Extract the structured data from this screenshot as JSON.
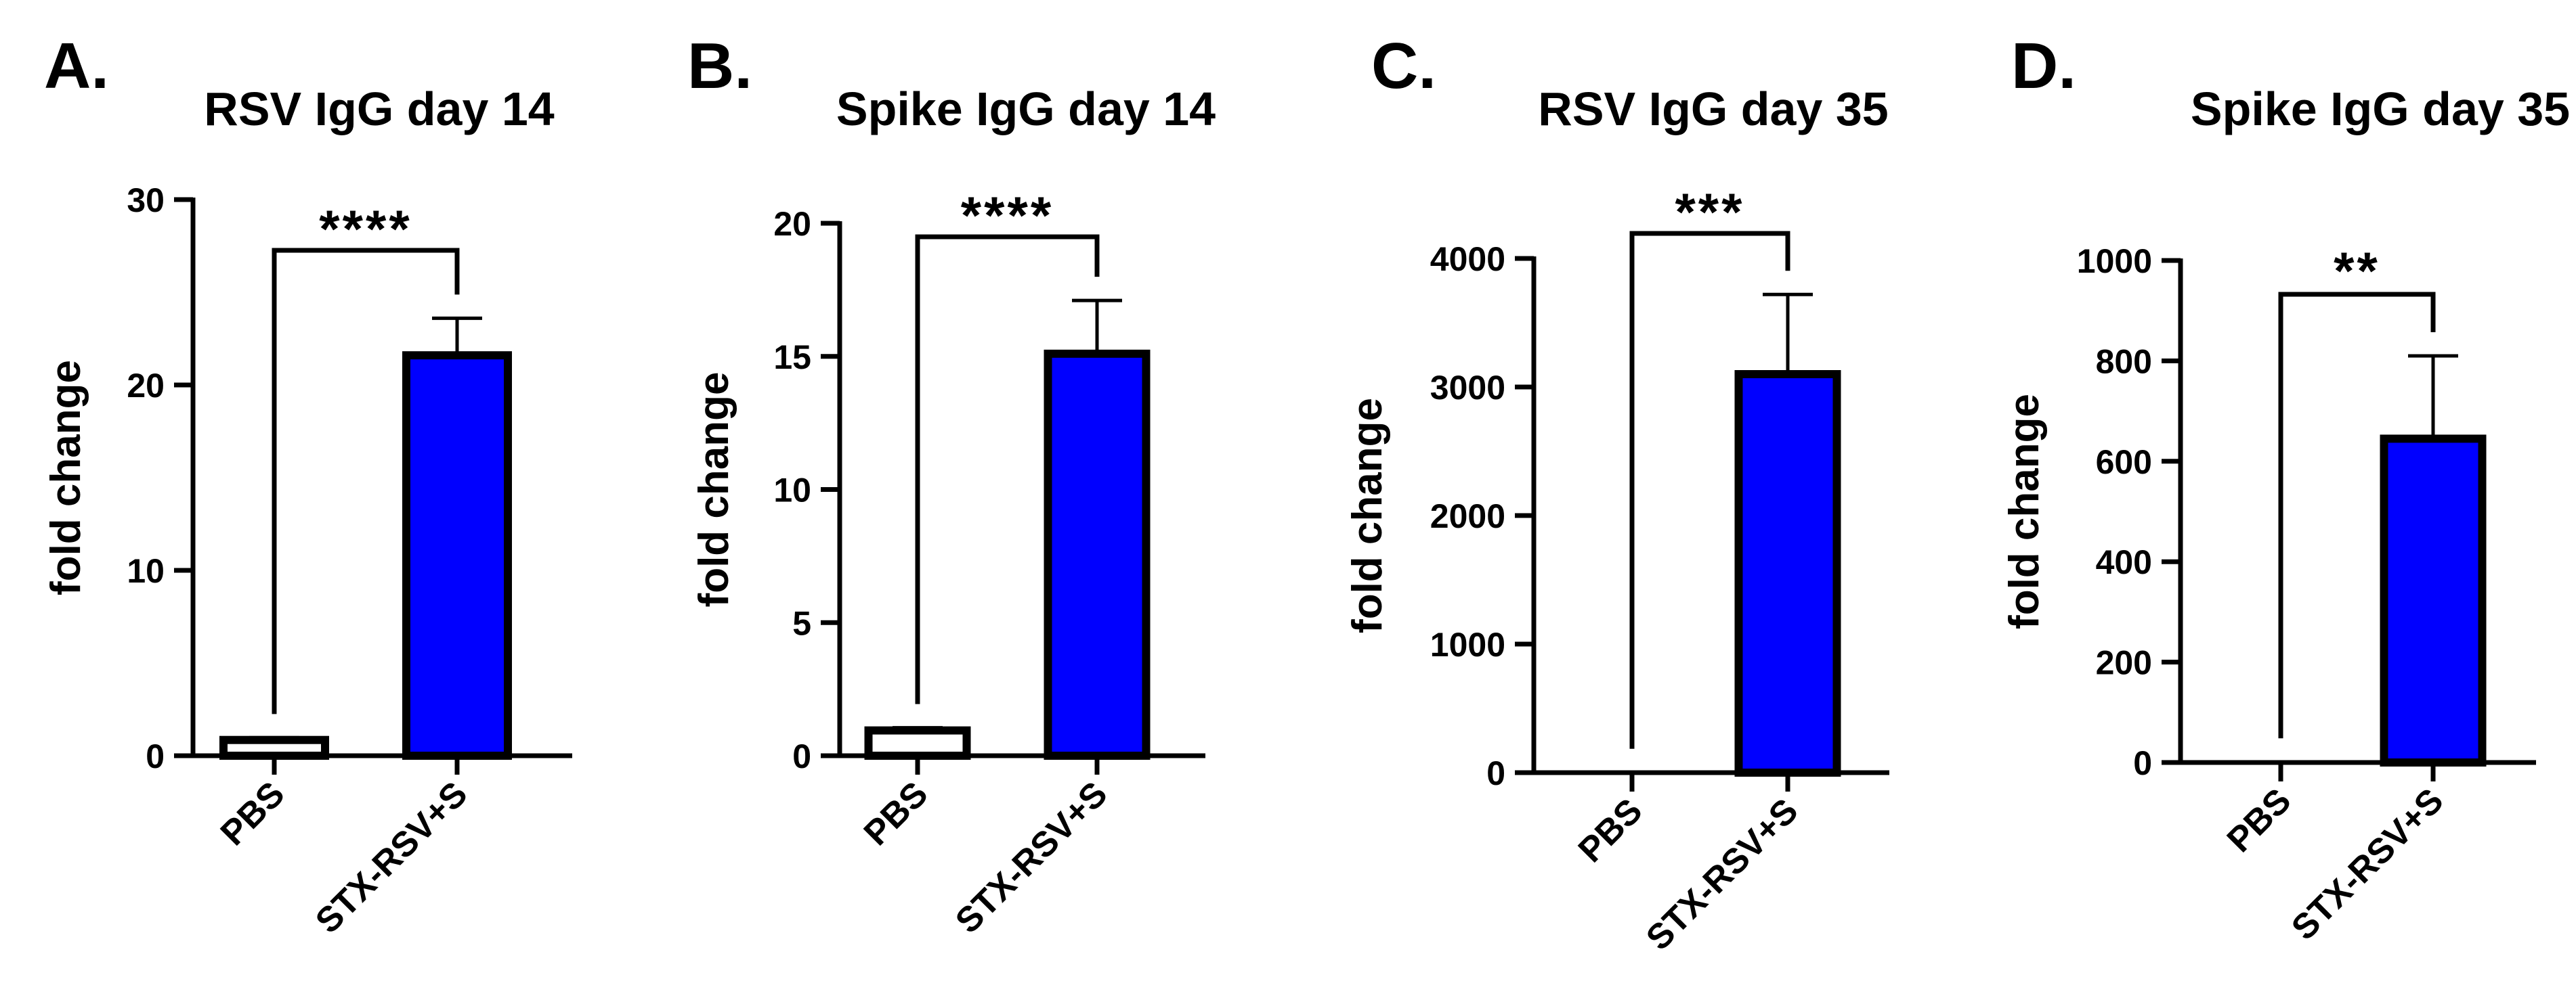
{
  "chart_data": [
    {
      "type": "bar",
      "panel": "A.",
      "title": "RSV IgG day 14",
      "ylabel": "fold change",
      "categories": [
        "PBS",
        "STX-RSV+S"
      ],
      "values": [
        0.85,
        21.6
      ],
      "errors": [
        0.12,
        2.0
      ],
      "bar_colors": [
        "#ffffff",
        "#0000ff"
      ],
      "ylim": [
        0,
        30
      ],
      "yticks": [
        0,
        10,
        20,
        30
      ],
      "ytick_labels": [
        "0",
        "10",
        "20",
        "30"
      ],
      "significance": "****"
    },
    {
      "type": "bar",
      "panel": "B.",
      "title": "Spike IgG day 14",
      "ylabel": "fold change",
      "categories": [
        "PBS",
        "STX-RSV+S"
      ],
      "values": [
        0.95,
        15.1
      ],
      "errors": [
        0.1,
        2.0
      ],
      "bar_colors": [
        "#ffffff",
        "#0000ff"
      ],
      "ylim": [
        0,
        20
      ],
      "yticks": [
        0,
        5,
        10,
        15,
        20
      ],
      "ytick_labels": [
        "0",
        "5",
        "10",
        "15",
        "20"
      ],
      "significance": "****"
    },
    {
      "type": "bar",
      "panel": "C.",
      "title": "RSV IgG day 35",
      "ylabel": "fold change",
      "categories": [
        "PBS",
        "STX-RSV+S"
      ],
      "values": [
        1,
        3100
      ],
      "errors": [
        0,
        620
      ],
      "bar_colors": [
        "#ffffff",
        "#0000ff"
      ],
      "ylim": [
        0,
        4000
      ],
      "yticks": [
        0,
        1000,
        2000,
        3000,
        4000
      ],
      "ytick_labels": [
        "0",
        "1000",
        "2000",
        "3000",
        "4000"
      ],
      "significance": "***"
    },
    {
      "type": "bar",
      "panel": "D.",
      "title": "Spike IgG day 35",
      "ylabel": "fold change",
      "categories": [
        "PBS",
        "STX-RSV+S"
      ],
      "values": [
        1,
        645
      ],
      "errors": [
        0,
        165
      ],
      "bar_colors": [
        "#ffffff",
        "#0000ff"
      ],
      "ylim": [
        0,
        1000
      ],
      "yticks": [
        0,
        200,
        400,
        600,
        800,
        1000
      ],
      "ytick_labels": [
        "0",
        "200",
        "400",
        "600",
        "800",
        "1000"
      ],
      "significance": "**"
    }
  ]
}
